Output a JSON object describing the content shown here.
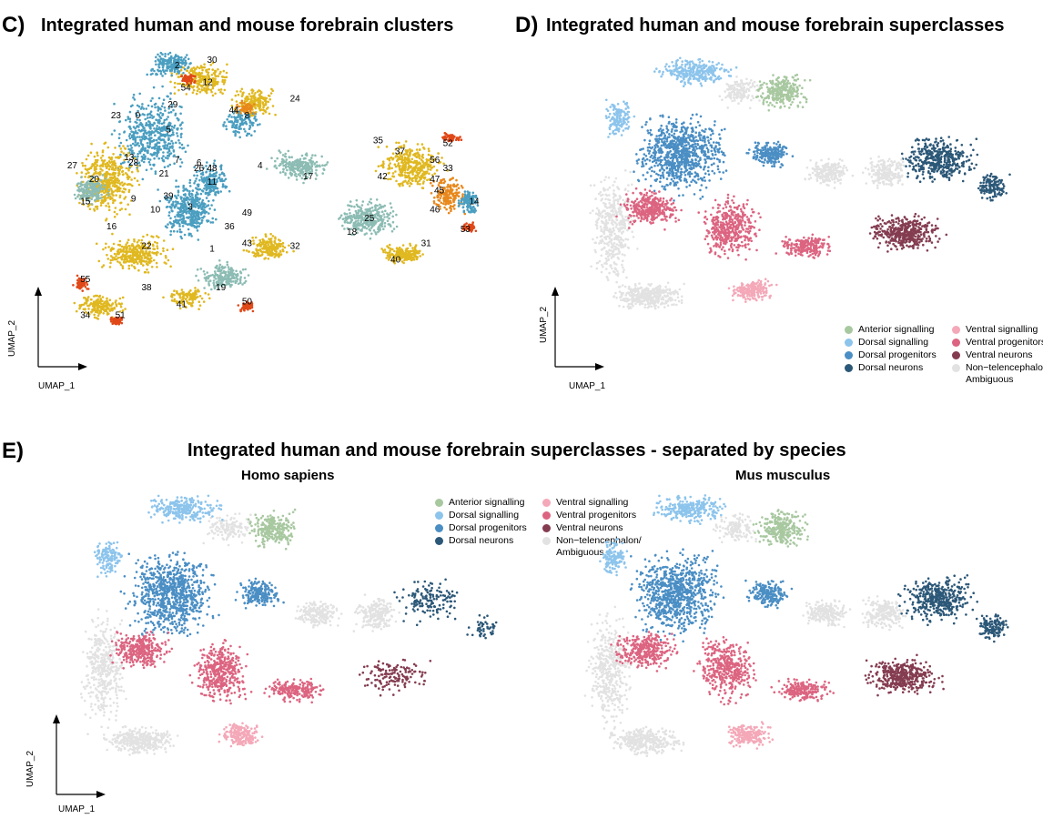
{
  "panels": {
    "c": {
      "letter": "C)",
      "title": "Integrated human and mouse forebrain clusters"
    },
    "d": {
      "letter": "D)",
      "title": "Integrated human and mouse forebrain superclasses"
    },
    "e": {
      "letter": "E)",
      "title": "Integrated human and mouse forebrain superclasses - separated by species",
      "left_title": "Homo sapiens",
      "right_title": "Mus musculus"
    }
  },
  "axes": {
    "x": "UMAP_1",
    "y": "UMAP_2"
  },
  "legend": [
    {
      "label": "Anterior signalling",
      "color": "#a8c8a0"
    },
    {
      "label": "Ventral signalling",
      "color": "#f4a8b8"
    },
    {
      "label": "Dorsal signalling",
      "color": "#8cc4ec"
    },
    {
      "label": "Ventral progenitors",
      "color": "#dc6480"
    },
    {
      "label": "Dorsal progenitors",
      "color": "#4a8ec4"
    },
    {
      "label": "Ventral neurons",
      "color": "#843c50"
    },
    {
      "label": "Dorsal neurons",
      "color": "#2c5878"
    },
    {
      "label": "Non−telencephalon/ Ambiguous",
      "color": "#e2e2e2"
    }
  ],
  "chart_data": [
    {
      "type": "scatter",
      "title": "Integrated human and mouse forebrain clusters",
      "xlabel": "UMAP_1",
      "ylabel": "UMAP_2",
      "cluster_labels": [
        {
          "label": "0",
          "x": 0.18,
          "y": 0.8
        },
        {
          "label": "1",
          "x": 0.35,
          "y": 0.32
        },
        {
          "label": "2",
          "x": 0.27,
          "y": 0.98
        },
        {
          "label": "3",
          "x": 0.3,
          "y": 0.47
        },
        {
          "label": "4",
          "x": 0.46,
          "y": 0.62
        },
        {
          "label": "5",
          "x": 0.25,
          "y": 0.75
        },
        {
          "label": "6",
          "x": 0.32,
          "y": 0.63
        },
        {
          "label": "7",
          "x": 0.27,
          "y": 0.64
        },
        {
          "label": "8",
          "x": 0.43,
          "y": 0.8
        },
        {
          "label": "9",
          "x": 0.17,
          "y": 0.5
        },
        {
          "label": "10",
          "x": 0.22,
          "y": 0.46
        },
        {
          "label": "11",
          "x": 0.35,
          "y": 0.56
        },
        {
          "label": "12",
          "x": 0.34,
          "y": 0.92
        },
        {
          "label": "13",
          "x": 0.16,
          "y": 0.65
        },
        {
          "label": "14",
          "x": 0.95,
          "y": 0.49
        },
        {
          "label": "15",
          "x": 0.06,
          "y": 0.49
        },
        {
          "label": "16",
          "x": 0.12,
          "y": 0.4
        },
        {
          "label": "17",
          "x": 0.57,
          "y": 0.58
        },
        {
          "label": "18",
          "x": 0.67,
          "y": 0.38
        },
        {
          "label": "19",
          "x": 0.37,
          "y": 0.18
        },
        {
          "label": "20",
          "x": 0.08,
          "y": 0.57
        },
        {
          "label": "21",
          "x": 0.24,
          "y": 0.59
        },
        {
          "label": "22",
          "x": 0.2,
          "y": 0.33
        },
        {
          "label": "23",
          "x": 0.13,
          "y": 0.8
        },
        {
          "label": "24",
          "x": 0.54,
          "y": 0.86
        },
        {
          "label": "25",
          "x": 0.71,
          "y": 0.43
        },
        {
          "label": "26",
          "x": 0.32,
          "y": 0.61
        },
        {
          "label": "27",
          "x": 0.03,
          "y": 0.62
        },
        {
          "label": "28",
          "x": 0.17,
          "y": 0.63
        },
        {
          "label": "29",
          "x": 0.26,
          "y": 0.84
        },
        {
          "label": "30",
          "x": 0.35,
          "y": 1.0
        },
        {
          "label": "31",
          "x": 0.84,
          "y": 0.34
        },
        {
          "label": "32",
          "x": 0.54,
          "y": 0.33
        },
        {
          "label": "33",
          "x": 0.89,
          "y": 0.61
        },
        {
          "label": "34",
          "x": 0.06,
          "y": 0.08
        },
        {
          "label": "35",
          "x": 0.73,
          "y": 0.71
        },
        {
          "label": "36",
          "x": 0.39,
          "y": 0.4
        },
        {
          "label": "37",
          "x": 0.78,
          "y": 0.67
        },
        {
          "label": "38",
          "x": 0.2,
          "y": 0.18
        },
        {
          "label": "39",
          "x": 0.25,
          "y": 0.51
        },
        {
          "label": "40",
          "x": 0.77,
          "y": 0.28
        },
        {
          "label": "41",
          "x": 0.28,
          "y": 0.12
        },
        {
          "label": "42",
          "x": 0.74,
          "y": 0.58
        },
        {
          "label": "43",
          "x": 0.43,
          "y": 0.34
        },
        {
          "label": "44",
          "x": 0.4,
          "y": 0.82
        },
        {
          "label": "45",
          "x": 0.87,
          "y": 0.53
        },
        {
          "label": "46",
          "x": 0.86,
          "y": 0.46
        },
        {
          "label": "47",
          "x": 0.86,
          "y": 0.57
        },
        {
          "label": "48",
          "x": 0.35,
          "y": 0.61
        },
        {
          "label": "49",
          "x": 0.43,
          "y": 0.45
        },
        {
          "label": "50",
          "x": 0.43,
          "y": 0.13
        },
        {
          "label": "51",
          "x": 0.14,
          "y": 0.08
        },
        {
          "label": "52",
          "x": 0.89,
          "y": 0.7
        },
        {
          "label": "53",
          "x": 0.93,
          "y": 0.39
        },
        {
          "label": "54",
          "x": 0.29,
          "y": 0.9
        },
        {
          "label": "55",
          "x": 0.06,
          "y": 0.21
        },
        {
          "label": "56",
          "x": 0.86,
          "y": 0.64
        }
      ],
      "cluster_colors": [
        "#4a9ec0",
        "#e0b820",
        "#8cbcb4",
        "#e8881c",
        "#e04818"
      ]
    },
    {
      "type": "scatter",
      "title": "Integrated human and mouse forebrain superclasses",
      "xlabel": "UMAP_1",
      "ylabel": "UMAP_2",
      "series": [
        {
          "name": "Anterior signalling"
        },
        {
          "name": "Ventral signalling"
        },
        {
          "name": "Dorsal signalling"
        },
        {
          "name": "Ventral progenitors"
        },
        {
          "name": "Dorsal progenitors"
        },
        {
          "name": "Ventral neurons"
        },
        {
          "name": "Dorsal neurons"
        },
        {
          "name": "Non−telencephalon/ Ambiguous"
        }
      ]
    },
    {
      "type": "scatter",
      "title": "Homo sapiens",
      "xlabel": "UMAP_1",
      "ylabel": "UMAP_2"
    },
    {
      "type": "scatter",
      "title": "Mus musculus"
    }
  ]
}
